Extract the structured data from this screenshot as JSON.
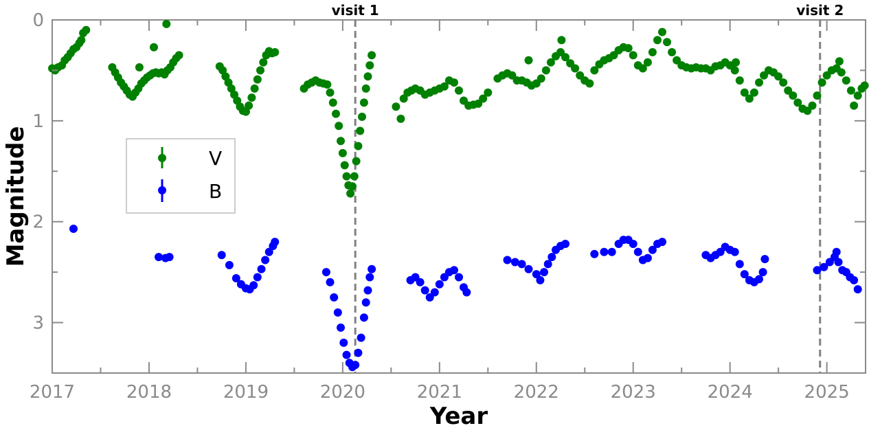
{
  "chart_data": {
    "type": "scatter",
    "xlabel": "Year",
    "ylabel": "Magnitude",
    "xlim": [
      2017.0,
      2025.4
    ],
    "ylim": [
      3.5,
      0.0
    ],
    "y_inverted": true,
    "x_ticks": [
      2017,
      2018,
      2019,
      2020,
      2021,
      2022,
      2023,
      2024,
      2025
    ],
    "x_tick_labels": [
      "2017",
      "2018",
      "2019",
      "2020",
      "2021",
      "2022",
      "2023",
      "2024",
      "2025"
    ],
    "y_ticks": [
      0,
      1,
      2,
      3
    ],
    "y_tick_labels": [
      "0",
      "1",
      "2",
      "3"
    ],
    "grid": false,
    "legend_position": "center-left",
    "vertical_lines": [
      {
        "x": 2020.13,
        "label": "visit 1",
        "color": "#808080",
        "style": "dashed"
      },
      {
        "x": 2024.93,
        "label": "visit 2",
        "color": "#808080",
        "style": "dashed"
      }
    ],
    "series": [
      {
        "name": "V",
        "color": "#008000",
        "points": [
          [
            2017.0,
            0.48
          ],
          [
            2017.03,
            0.5
          ],
          [
            2017.06,
            0.47
          ],
          [
            2017.1,
            0.45
          ],
          [
            2017.13,
            0.4
          ],
          [
            2017.16,
            0.37
          ],
          [
            2017.19,
            0.33
          ],
          [
            2017.22,
            0.29
          ],
          [
            2017.25,
            0.27
          ],
          [
            2017.28,
            0.23
          ],
          [
            2017.3,
            0.2
          ],
          [
            2017.32,
            0.13
          ],
          [
            2017.35,
            0.1
          ],
          [
            2017.62,
            0.47
          ],
          [
            2017.65,
            0.52
          ],
          [
            2017.68,
            0.57
          ],
          [
            2017.71,
            0.62
          ],
          [
            2017.74,
            0.66
          ],
          [
            2017.77,
            0.7
          ],
          [
            2017.8,
            0.74
          ],
          [
            2017.83,
            0.76
          ],
          [
            2017.86,
            0.72
          ],
          [
            2017.89,
            0.68
          ],
          [
            2017.92,
            0.63
          ],
          [
            2017.95,
            0.6
          ],
          [
            2017.98,
            0.57
          ],
          [
            2018.01,
            0.55
          ],
          [
            2018.04,
            0.53
          ],
          [
            2018.07,
            0.52
          ],
          [
            2018.1,
            0.53
          ],
          [
            2018.13,
            0.52
          ],
          [
            2018.16,
            0.54
          ],
          [
            2018.19,
            0.5
          ],
          [
            2018.22,
            0.47
          ],
          [
            2018.25,
            0.42
          ],
          [
            2018.28,
            0.38
          ],
          [
            2018.31,
            0.35
          ],
          [
            2017.9,
            0.47
          ],
          [
            2018.05,
            0.27
          ],
          [
            2018.18,
            0.04
          ],
          [
            2018.73,
            0.46
          ],
          [
            2018.76,
            0.5
          ],
          [
            2018.79,
            0.56
          ],
          [
            2018.82,
            0.62
          ],
          [
            2018.85,
            0.68
          ],
          [
            2018.88,
            0.74
          ],
          [
            2018.91,
            0.8
          ],
          [
            2018.94,
            0.86
          ],
          [
            2018.97,
            0.9
          ],
          [
            2019.0,
            0.91
          ],
          [
            2019.03,
            0.85
          ],
          [
            2019.06,
            0.77
          ],
          [
            2019.09,
            0.68
          ],
          [
            2019.12,
            0.59
          ],
          [
            2019.15,
            0.5
          ],
          [
            2019.18,
            0.42
          ],
          [
            2019.21,
            0.35
          ],
          [
            2019.24,
            0.31
          ],
          [
            2019.27,
            0.33
          ],
          [
            2019.3,
            0.32
          ],
          [
            2019.6,
            0.68
          ],
          [
            2019.64,
            0.64
          ],
          [
            2019.68,
            0.62
          ],
          [
            2019.72,
            0.6
          ],
          [
            2019.76,
            0.62
          ],
          [
            2019.8,
            0.63
          ],
          [
            2019.84,
            0.64
          ],
          [
            2019.87,
            0.72
          ],
          [
            2019.9,
            0.82
          ],
          [
            2019.93,
            0.93
          ],
          [
            2019.96,
            1.05
          ],
          [
            2019.98,
            1.2
          ],
          [
            2020.0,
            1.32
          ],
          [
            2020.02,
            1.44
          ],
          [
            2020.04,
            1.55
          ],
          [
            2020.06,
            1.64
          ],
          [
            2020.08,
            1.72
          ],
          [
            2020.1,
            1.65
          ],
          [
            2020.12,
            1.55
          ],
          [
            2020.14,
            1.4
          ],
          [
            2020.16,
            1.25
          ],
          [
            2020.18,
            1.1
          ],
          [
            2020.2,
            0.96
          ],
          [
            2020.22,
            0.82
          ],
          [
            2020.24,
            0.68
          ],
          [
            2020.26,
            0.56
          ],
          [
            2020.28,
            0.45
          ],
          [
            2020.3,
            0.35
          ],
          [
            2020.55,
            0.86
          ],
          [
            2020.6,
            0.98
          ],
          [
            2020.63,
            0.78
          ],
          [
            2020.67,
            0.72
          ],
          [
            2020.71,
            0.7
          ],
          [
            2020.75,
            0.68
          ],
          [
            2020.8,
            0.7
          ],
          [
            2020.85,
            0.74
          ],
          [
            2020.9,
            0.72
          ],
          [
            2020.95,
            0.7
          ],
          [
            2021.0,
            0.68
          ],
          [
            2021.05,
            0.66
          ],
          [
            2021.1,
            0.6
          ],
          [
            2021.15,
            0.62
          ],
          [
            2021.2,
            0.7
          ],
          [
            2021.25,
            0.8
          ],
          [
            2021.3,
            0.85
          ],
          [
            2021.35,
            0.84
          ],
          [
            2021.4,
            0.83
          ],
          [
            2021.45,
            0.78
          ],
          [
            2021.5,
            0.72
          ],
          [
            2021.6,
            0.58
          ],
          [
            2021.65,
            0.55
          ],
          [
            2021.7,
            0.53
          ],
          [
            2021.75,
            0.55
          ],
          [
            2021.8,
            0.6
          ],
          [
            2021.85,
            0.6
          ],
          [
            2021.9,
            0.62
          ],
          [
            2021.95,
            0.65
          ],
          [
            2022.0,
            0.63
          ],
          [
            2022.05,
            0.58
          ],
          [
            2022.1,
            0.5
          ],
          [
            2022.15,
            0.42
          ],
          [
            2022.2,
            0.36
          ],
          [
            2022.25,
            0.32
          ],
          [
            2022.3,
            0.37
          ],
          [
            2022.35,
            0.43
          ],
          [
            2022.4,
            0.48
          ],
          [
            2022.45,
            0.55
          ],
          [
            2022.5,
            0.6
          ],
          [
            2022.55,
            0.63
          ],
          [
            2021.92,
            0.4
          ],
          [
            2022.26,
            0.2
          ],
          [
            2022.6,
            0.5
          ],
          [
            2022.65,
            0.44
          ],
          [
            2022.7,
            0.4
          ],
          [
            2022.75,
            0.38
          ],
          [
            2022.8,
            0.35
          ],
          [
            2022.85,
            0.3
          ],
          [
            2022.9,
            0.27
          ],
          [
            2022.95,
            0.28
          ],
          [
            2023.0,
            0.35
          ],
          [
            2023.05,
            0.45
          ],
          [
            2023.1,
            0.48
          ],
          [
            2023.15,
            0.42
          ],
          [
            2023.2,
            0.32
          ],
          [
            2023.25,
            0.2
          ],
          [
            2023.3,
            0.12
          ],
          [
            2023.35,
            0.22
          ],
          [
            2023.4,
            0.32
          ],
          [
            2023.45,
            0.4
          ],
          [
            2023.5,
            0.45
          ],
          [
            2023.55,
            0.47
          ],
          [
            2023.6,
            0.48
          ],
          [
            2023.65,
            0.47
          ],
          [
            2023.7,
            0.48
          ],
          [
            2023.75,
            0.48
          ],
          [
            2023.8,
            0.5
          ],
          [
            2023.85,
            0.46
          ],
          [
            2023.9,
            0.45
          ],
          [
            2023.95,
            0.42
          ],
          [
            2024.0,
            0.45
          ],
          [
            2024.05,
            0.5
          ],
          [
            2024.1,
            0.6
          ],
          [
            2024.15,
            0.72
          ],
          [
            2024.2,
            0.78
          ],
          [
            2024.25,
            0.72
          ],
          [
            2024.3,
            0.62
          ],
          [
            2024.35,
            0.55
          ],
          [
            2024.4,
            0.5
          ],
          [
            2024.45,
            0.52
          ],
          [
            2024.5,
            0.56
          ],
          [
            2024.55,
            0.62
          ],
          [
            2024.6,
            0.7
          ],
          [
            2024.65,
            0.75
          ],
          [
            2024.7,
            0.82
          ],
          [
            2024.75,
            0.88
          ],
          [
            2024.8,
            0.9
          ],
          [
            2024.85,
            0.85
          ],
          [
            2024.9,
            0.75
          ],
          [
            2024.95,
            0.62
          ],
          [
            2025.0,
            0.55
          ],
          [
            2025.05,
            0.5
          ],
          [
            2025.1,
            0.48
          ],
          [
            2025.15,
            0.52
          ],
          [
            2025.2,
            0.6
          ],
          [
            2025.25,
            0.7
          ],
          [
            2025.28,
            0.85
          ],
          [
            2025.32,
            0.75
          ],
          [
            2025.36,
            0.68
          ],
          [
            2025.39,
            0.65
          ],
          [
            2024.06,
            0.42
          ],
          [
            2025.13,
            0.41
          ]
        ]
      },
      {
        "name": "B",
        "color": "#0000ff",
        "points": [
          [
            2017.22,
            2.07
          ],
          [
            2018.1,
            2.35
          ],
          [
            2018.17,
            2.36
          ],
          [
            2018.21,
            2.35
          ],
          [
            2018.75,
            2.33
          ],
          [
            2018.83,
            2.43
          ],
          [
            2018.9,
            2.56
          ],
          [
            2018.95,
            2.62
          ],
          [
            2019.0,
            2.66
          ],
          [
            2019.04,
            2.67
          ],
          [
            2019.08,
            2.63
          ],
          [
            2019.12,
            2.55
          ],
          [
            2019.16,
            2.47
          ],
          [
            2019.2,
            2.38
          ],
          [
            2019.24,
            2.3
          ],
          [
            2019.28,
            2.24
          ],
          [
            2019.3,
            2.2
          ],
          [
            2019.83,
            2.5
          ],
          [
            2019.87,
            2.6
          ],
          [
            2019.91,
            2.75
          ],
          [
            2019.95,
            2.9
          ],
          [
            2019.98,
            3.05
          ],
          [
            2020.01,
            3.2
          ],
          [
            2020.04,
            3.32
          ],
          [
            2020.07,
            3.4
          ],
          [
            2020.1,
            3.44
          ],
          [
            2020.13,
            3.42
          ],
          [
            2020.16,
            3.3
          ],
          [
            2020.19,
            3.15
          ],
          [
            2020.22,
            2.95
          ],
          [
            2020.24,
            2.8
          ],
          [
            2020.26,
            2.68
          ],
          [
            2020.28,
            2.55
          ],
          [
            2020.3,
            2.47
          ],
          [
            2020.7,
            2.58
          ],
          [
            2020.75,
            2.55
          ],
          [
            2020.8,
            2.6
          ],
          [
            2020.85,
            2.68
          ],
          [
            2020.9,
            2.75
          ],
          [
            2020.95,
            2.7
          ],
          [
            2021.0,
            2.62
          ],
          [
            2021.05,
            2.55
          ],
          [
            2021.1,
            2.5
          ],
          [
            2021.15,
            2.48
          ],
          [
            2021.2,
            2.55
          ],
          [
            2021.25,
            2.65
          ],
          [
            2021.28,
            2.7
          ],
          [
            2021.7,
            2.38
          ],
          [
            2021.78,
            2.4
          ],
          [
            2021.85,
            2.42
          ],
          [
            2021.92,
            2.47
          ],
          [
            2022.0,
            2.52
          ],
          [
            2022.04,
            2.58
          ],
          [
            2022.08,
            2.5
          ],
          [
            2022.12,
            2.42
          ],
          [
            2022.16,
            2.35
          ],
          [
            2022.2,
            2.28
          ],
          [
            2022.25,
            2.24
          ],
          [
            2022.3,
            2.22
          ],
          [
            2022.6,
            2.32
          ],
          [
            2022.7,
            2.3
          ],
          [
            2022.78,
            2.3
          ],
          [
            2022.85,
            2.22
          ],
          [
            2022.9,
            2.18
          ],
          [
            2022.95,
            2.18
          ],
          [
            2023.0,
            2.22
          ],
          [
            2023.05,
            2.3
          ],
          [
            2023.1,
            2.38
          ],
          [
            2023.15,
            2.36
          ],
          [
            2023.2,
            2.28
          ],
          [
            2023.25,
            2.22
          ],
          [
            2023.3,
            2.2
          ],
          [
            2023.75,
            2.33
          ],
          [
            2023.8,
            2.36
          ],
          [
            2023.85,
            2.33
          ],
          [
            2023.9,
            2.3
          ],
          [
            2023.95,
            2.25
          ],
          [
            2024.0,
            2.28
          ],
          [
            2024.05,
            2.3
          ],
          [
            2024.1,
            2.42
          ],
          [
            2024.15,
            2.52
          ],
          [
            2024.2,
            2.58
          ],
          [
            2024.25,
            2.6
          ],
          [
            2024.3,
            2.57
          ],
          [
            2024.34,
            2.5
          ],
          [
            2024.36,
            2.37
          ],
          [
            2024.9,
            2.48
          ],
          [
            2024.97,
            2.45
          ],
          [
            2025.03,
            2.4
          ],
          [
            2025.08,
            2.35
          ],
          [
            2025.12,
            2.4
          ],
          [
            2025.16,
            2.48
          ],
          [
            2025.2,
            2.5
          ],
          [
            2025.24,
            2.55
          ],
          [
            2025.28,
            2.58
          ],
          [
            2025.32,
            2.67
          ],
          [
            2025.1,
            2.3
          ]
        ]
      }
    ]
  }
}
